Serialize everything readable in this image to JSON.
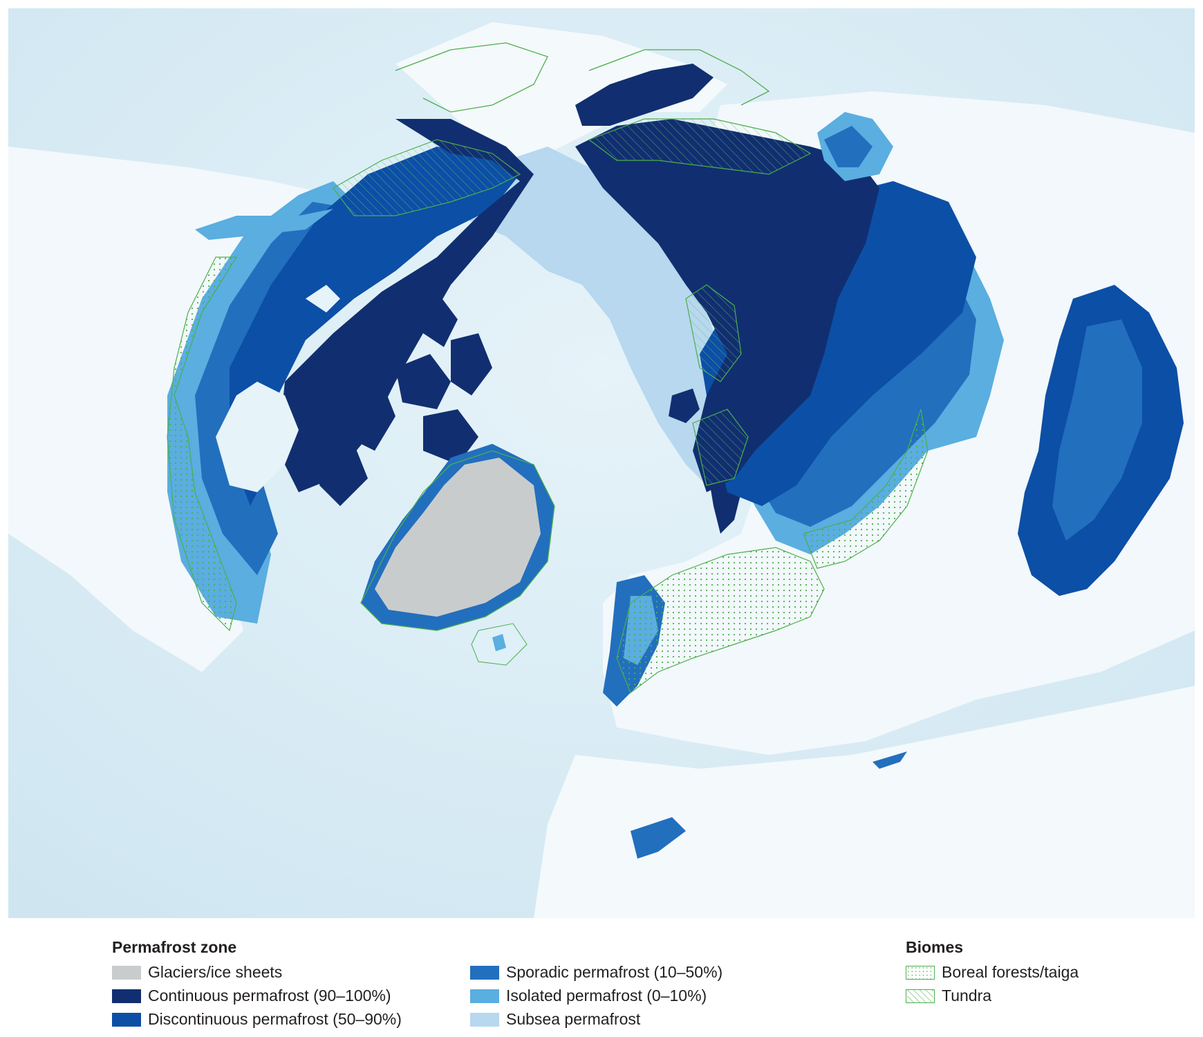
{
  "legend": {
    "permafrost": {
      "title": "Permafrost zone",
      "items": [
        {
          "label": "Glaciers/ice sheets",
          "color": "#c9cccd"
        },
        {
          "label": "Continuous permafrost (90–100%)",
          "color": "#112f70"
        },
        {
          "label": "Discontinuous permafrost (50–90%)",
          "color": "#0c4fa6"
        },
        {
          "label": "Sporadic permafrost (10–50%)",
          "color": "#226fbe"
        },
        {
          "label": "Isolated permafrost (0–10%)",
          "color": "#5aaee0"
        },
        {
          "label": "Subsea permafrost",
          "color": "#b7d8ee"
        }
      ]
    },
    "biomes": {
      "title": "Biomes",
      "items": [
        {
          "label": "Boreal forests/taiga",
          "pattern": "dots",
          "color": "#4cae4c"
        },
        {
          "label": "Tundra",
          "pattern": "hatch",
          "color": "#4cae4c"
        }
      ]
    }
  },
  "colors": {
    "ocean": "#ddeef6",
    "land": "#f1f8fb",
    "biome_outline": "#4cae4c"
  }
}
